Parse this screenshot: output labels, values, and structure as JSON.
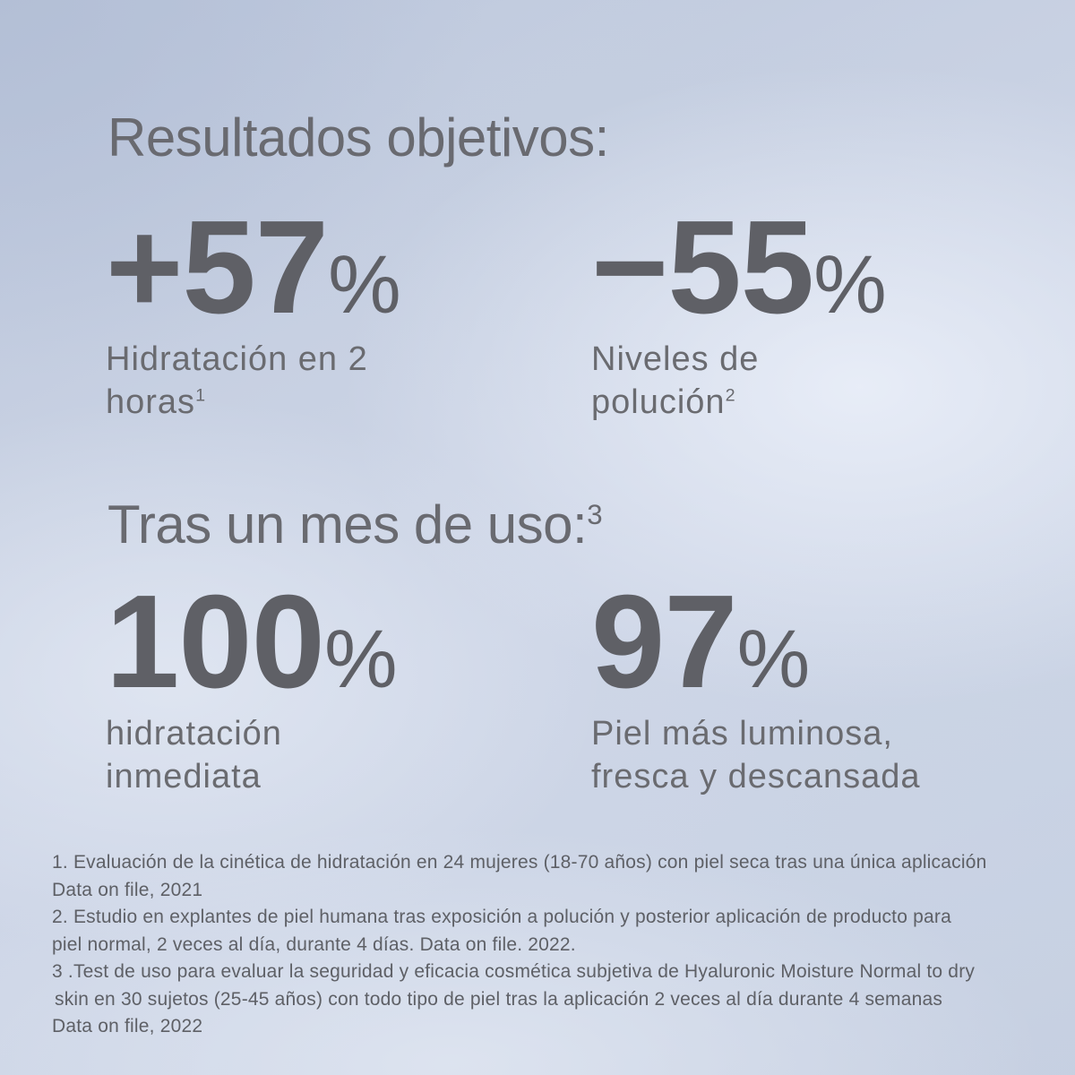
{
  "header": {
    "title": "Resultados objetivos:"
  },
  "section2": {
    "title": "Tras un mes de uso:",
    "sup": "3"
  },
  "stats": [
    {
      "number": "+57",
      "percent": "%",
      "label_line1": "Hidratación en 2",
      "label_line2": "horas",
      "sup": "1"
    },
    {
      "number": "−55",
      "percent": "%",
      "label_line1": "Niveles de",
      "label_line2": "polución",
      "sup": "2"
    },
    {
      "number": "100",
      "percent": "%",
      "label_line1": "hidratación",
      "label_line2": "inmediata",
      "sup": ""
    },
    {
      "number": "97",
      "percent": "%",
      "label_line1": "Piel más luminosa,",
      "label_line2": "fresca y descansada",
      "sup": ""
    }
  ],
  "footnotes": [
    "1. Evaluación de la cinética de hidratación en 24 mujeres (18-70 años) con piel seca tras una única aplicación",
    "Data on file, 2021",
    "2. Estudio en explantes de piel humana tras exposición a polución y posterior aplicación de producto para",
    "piel normal, 2 veces al día, durante 4 días. Data on file. 2022.",
    "3 .Test de uso para evaluar la seguridad y eficacia cosmética subjetiva de Hyaluronic Moisture Normal to dry",
    "skin en 30 sujetos (25-45 años) con todo tipo de piel tras la aplicación 2 veces al día durante 4 semanas",
    "Data on file, 2022"
  ],
  "colors": {
    "background_blue": "#c9d2e4",
    "background_blue_dark": "#b9c4da",
    "background_blue_light": "#e6ebf5",
    "number_gray": "#5f6066",
    "label_gray": "#6a6b70",
    "footnote_gray": "#5e6066"
  }
}
